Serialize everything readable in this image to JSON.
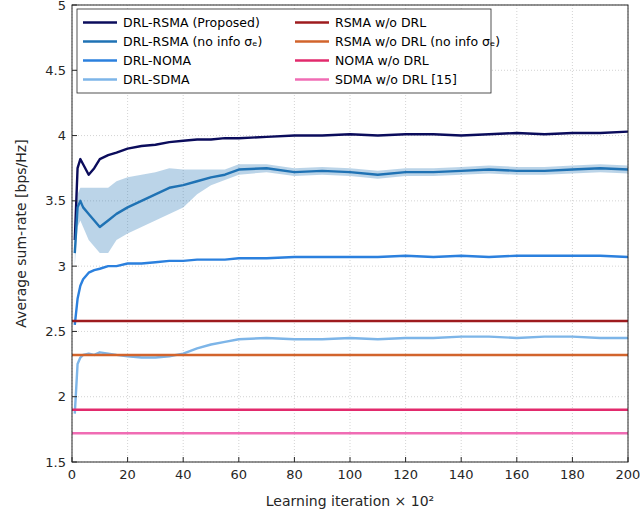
{
  "chart_data": {
    "type": "line",
    "x_label": "Learning iteration × 10²",
    "y_label": "Average sum-rate [bps/Hz]",
    "xlim": [
      0,
      200
    ],
    "ylim": [
      1.5,
      5
    ],
    "xticks": [
      0,
      20,
      40,
      60,
      80,
      100,
      120,
      140,
      160,
      180,
      200
    ],
    "yticks": [
      1.5,
      2,
      2.5,
      3,
      3.5,
      4,
      4.5,
      5
    ],
    "grid": true,
    "legend": "upper left",
    "x": [
      1,
      2,
      3,
      4,
      6,
      8,
      10,
      13,
      16,
      20,
      25,
      30,
      35,
      40,
      45,
      50,
      55,
      60,
      70,
      80,
      90,
      100,
      110,
      120,
      130,
      140,
      150,
      160,
      170,
      180,
      190,
      200
    ],
    "series": [
      {
        "name": "DRL-RSMA (Proposed)",
        "color": "#0b0c5c",
        "values": [
          3.2,
          3.75,
          3.82,
          3.78,
          3.7,
          3.75,
          3.82,
          3.85,
          3.87,
          3.9,
          3.92,
          3.93,
          3.95,
          3.96,
          3.97,
          3.97,
          3.98,
          3.98,
          3.99,
          4.0,
          4.0,
          4.01,
          4.0,
          4.01,
          4.01,
          4.0,
          4.01,
          4.02,
          4.01,
          4.02,
          4.02,
          4.03
        ]
      },
      {
        "name": "DRL-RSMA (no info σₑ)",
        "color": "#1f72b4",
        "values": [
          3.1,
          3.45,
          3.5,
          3.45,
          3.4,
          3.35,
          3.3,
          3.35,
          3.4,
          3.45,
          3.5,
          3.55,
          3.6,
          3.62,
          3.65,
          3.68,
          3.7,
          3.74,
          3.75,
          3.72,
          3.73,
          3.72,
          3.7,
          3.72,
          3.72,
          3.73,
          3.74,
          3.73,
          3.73,
          3.74,
          3.75,
          3.74
        ],
        "lower": [
          3.0,
          3.3,
          3.35,
          3.3,
          3.2,
          3.15,
          3.1,
          3.1,
          3.2,
          3.25,
          3.3,
          3.35,
          3.4,
          3.45,
          3.55,
          3.62,
          3.66,
          3.7,
          3.72,
          3.69,
          3.7,
          3.69,
          3.67,
          3.69,
          3.69,
          3.7,
          3.71,
          3.7,
          3.7,
          3.71,
          3.72,
          3.71
        ],
        "upper": [
          3.2,
          3.55,
          3.6,
          3.6,
          3.6,
          3.6,
          3.6,
          3.6,
          3.65,
          3.68,
          3.7,
          3.72,
          3.75,
          3.74,
          3.74,
          3.74,
          3.74,
          3.78,
          3.78,
          3.75,
          3.76,
          3.75,
          3.73,
          3.75,
          3.75,
          3.76,
          3.77,
          3.76,
          3.76,
          3.77,
          3.78,
          3.77
        ]
      },
      {
        "name": "DRL-NOMA",
        "color": "#2b80de",
        "values": [
          2.55,
          2.75,
          2.85,
          2.9,
          2.95,
          2.97,
          2.98,
          3.0,
          3.0,
          3.02,
          3.02,
          3.03,
          3.04,
          3.04,
          3.05,
          3.05,
          3.05,
          3.06,
          3.06,
          3.07,
          3.07,
          3.07,
          3.07,
          3.08,
          3.07,
          3.08,
          3.07,
          3.08,
          3.08,
          3.08,
          3.08,
          3.07
        ]
      },
      {
        "name": "DRL-SDMA",
        "color": "#7db5e8",
        "values": [
          1.87,
          2.25,
          2.3,
          2.32,
          2.33,
          2.32,
          2.34,
          2.33,
          2.32,
          2.31,
          2.3,
          2.3,
          2.31,
          2.33,
          2.37,
          2.4,
          2.42,
          2.44,
          2.45,
          2.44,
          2.44,
          2.45,
          2.44,
          2.45,
          2.45,
          2.46,
          2.46,
          2.45,
          2.46,
          2.46,
          2.45,
          2.45
        ]
      },
      {
        "name": "RSMA w/o DRL",
        "color": "#9e1b1e",
        "x": [
          0,
          200
        ],
        "values": [
          2.58,
          2.58
        ]
      },
      {
        "name": "RSMA w/o DRL (no info σₑ)",
        "color": "#d2642c",
        "x": [
          0,
          200
        ],
        "values": [
          2.32,
          2.32
        ]
      },
      {
        "name": "NOMA w/o DRL",
        "color": "#e22a6c",
        "x": [
          0,
          200
        ],
        "values": [
          1.9,
          1.9
        ]
      },
      {
        "name": "SDMA w/o DRL [15]",
        "color": "#f06cb4",
        "x": [
          0,
          200
        ],
        "values": [
          1.72,
          1.72
        ]
      }
    ]
  }
}
